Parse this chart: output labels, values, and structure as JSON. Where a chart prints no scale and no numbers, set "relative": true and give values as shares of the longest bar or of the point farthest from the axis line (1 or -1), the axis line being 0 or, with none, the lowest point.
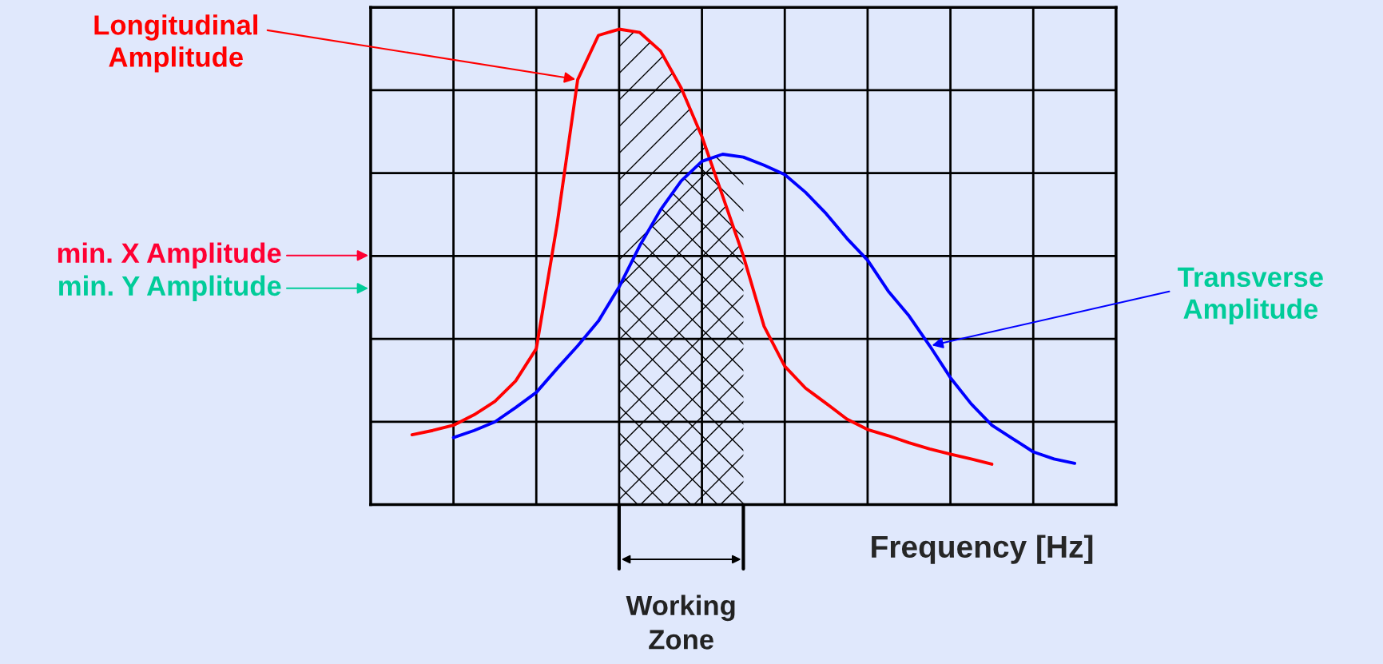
{
  "chart_data": {
    "type": "line",
    "relative": true,
    "xlabel": "Frequency [Hz]",
    "grid": true,
    "categories": [
      null,
      null,
      null,
      null,
      null,
      null,
      null,
      null,
      null,
      null,
      null,
      null,
      null,
      null,
      null,
      null,
      null,
      null,
      null,
      null,
      null,
      null,
      null,
      null,
      null,
      null,
      null,
      null,
      null,
      null,
      null,
      null,
      null,
      null,
      null,
      null,
      null
    ],
    "series": [
      {
        "name": "Longitudinal Amplitude",
        "color": "#ff0000",
        "values": [
          null,
          null,
          0.147,
          0.156,
          0.167,
          0.189,
          0.217,
          0.26,
          0.328,
          0.588,
          0.894,
          0.987,
          1.0,
          0.993,
          0.954,
          0.876,
          0.774,
          0.649,
          0.523,
          0.375,
          0.291,
          0.245,
          0.213,
          0.18,
          0.158,
          0.145,
          0.13,
          0.117,
          0.106,
          0.096,
          0.085,
          null,
          null,
          null,
          null,
          null,
          null
        ]
      },
      {
        "name": "Transverse Amplitude",
        "color": "#0000ff",
        "values": [
          null,
          null,
          null,
          null,
          0.141,
          0.156,
          0.174,
          0.204,
          0.236,
          0.286,
          0.334,
          0.386,
          0.458,
          0.545,
          0.62,
          0.681,
          0.722,
          0.737,
          0.731,
          0.714,
          0.694,
          0.657,
          0.612,
          0.56,
          0.514,
          0.449,
          0.397,
          0.334,
          0.267,
          0.212,
          0.167,
          0.139,
          0.111,
          0.096,
          0.087,
          null,
          null
        ]
      }
    ],
    "annotations": [
      "min. X Amplitude",
      "min. Y Amplitude",
      "Working Zone"
    ]
  }
}
